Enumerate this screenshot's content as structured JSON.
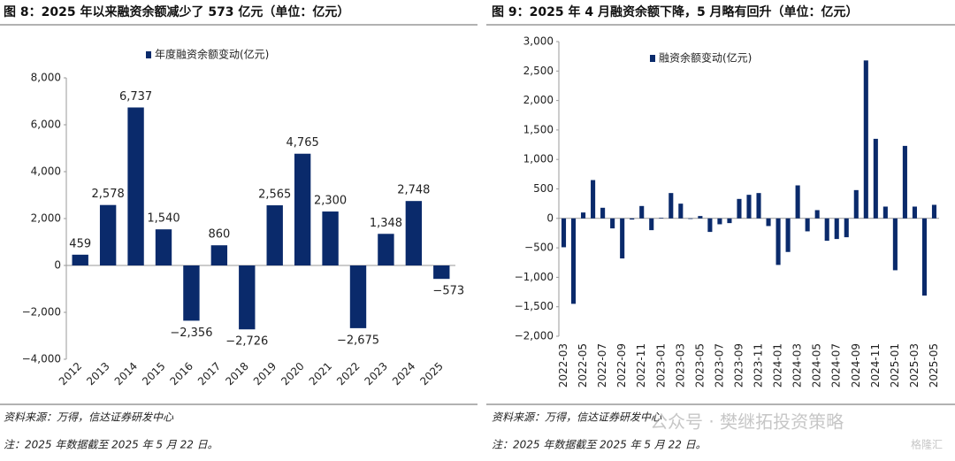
{
  "chart_data": [
    {
      "type": "bar",
      "title": "图 8：2025 年以来融资余额减少了 573 亿元（单位：亿元）",
      "categories": [
        "2012",
        "2013",
        "2014",
        "2015",
        "2016",
        "2017",
        "2018",
        "2019",
        "2020",
        "2021",
        "2022",
        "2023",
        "2024",
        "2025"
      ],
      "series": [
        {
          "name": "年度融资余额变动(亿元)",
          "color": "#0a2a6b",
          "values": [
            459,
            2578,
            6737,
            1540,
            -2356,
            860,
            -2726,
            2565,
            4765,
            2300,
            -2675,
            1348,
            2748,
            -573
          ],
          "value_labels": [
            "459",
            "2,578",
            "6,737",
            "1,540",
            "−2,356",
            "860",
            "−2,726",
            "2,565",
            "4,765",
            "2,300",
            "−2,675",
            "1,348",
            "2,748",
            "−573"
          ]
        }
      ],
      "ylim": [
        -4000,
        8000
      ],
      "yticks": [
        {
          "value": -4000,
          "label": "−4,000"
        },
        {
          "value": -2000,
          "label": "−2,000"
        },
        0,
        {
          "value": 2000,
          "label": "2,000"
        },
        {
          "value": 4000,
          "label": "4,000"
        },
        {
          "value": 6000,
          "label": "6,000"
        },
        {
          "value": 8000,
          "label": "8,000"
        }
      ],
      "source": "资料来源：万得，信达证券研发中心",
      "note": "注：2025 年数据截至 2025 年 5 月 22 日。"
    },
    {
      "type": "bar",
      "title": "图 9：2025 年 4 月融资余额下降，5 月略有回升（单位：亿元）",
      "categories": [
        "2022-03",
        null,
        "2022-05",
        null,
        "2022-07",
        null,
        "2022-09",
        null,
        "2022-11",
        null,
        "2023-01",
        null,
        "2023-03",
        null,
        "2023-05",
        null,
        "2023-07",
        null,
        "2023-09",
        null,
        "2023-11",
        null,
        "2024-01",
        null,
        "2024-03",
        null,
        "2024-05",
        null,
        "2024-07",
        null,
        "2024-09",
        null,
        "2024-11",
        null,
        "2025-01",
        null,
        "2025-03",
        null,
        "2025-05"
      ],
      "series": [
        {
          "name": "融资余额变动(亿元)",
          "color": "#0a2a6b",
          "values": [
            -490,
            -1450,
            100,
            650,
            180,
            -170,
            -680,
            -20,
            210,
            -200,
            10,
            430,
            250,
            -10,
            40,
            -230,
            -100,
            -80,
            330,
            400,
            430,
            -130,
            -790,
            -570,
            560,
            -220,
            140,
            -380,
            -350,
            -320,
            480,
            2680,
            1350,
            200,
            -880,
            1230,
            200,
            -1310,
            230
          ]
        }
      ],
      "ylim": [
        -2000,
        3000
      ],
      "yticks": [
        {
          "value": -2000,
          "label": "−2,000"
        },
        {
          "value": -1500,
          "label": "−1,500"
        },
        {
          "value": -1000,
          "label": "−1,000"
        },
        {
          "value": -500,
          "label": "−500"
        },
        0,
        500,
        {
          "value": 1000,
          "label": "1,000"
        },
        {
          "value": 1500,
          "label": "1,500"
        },
        {
          "value": 2000,
          "label": "2,000"
        },
        {
          "value": 2500,
          "label": "2,500"
        },
        {
          "value": 3000,
          "label": "3,000"
        }
      ],
      "source": "资料来源：万得，信达证券研发中心",
      "note": "注：2025 年数据截至 2025 年 5 月 22 日。",
      "watermark": [
        "公众号 · 樊继拓投资策略",
        "格隆汇"
      ]
    }
  ]
}
